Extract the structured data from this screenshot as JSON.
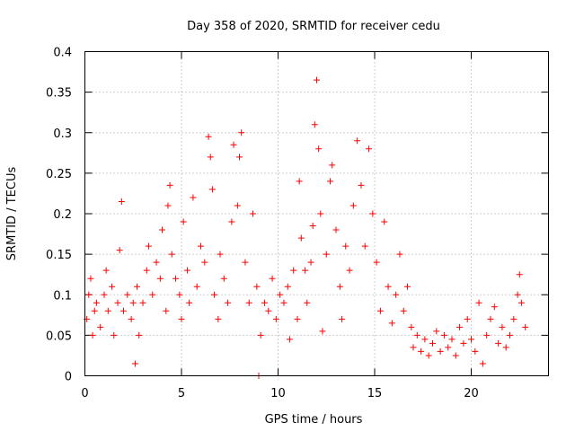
{
  "chart_data": {
    "type": "scatter",
    "title": "Day 358 of 2020, SRMTID for receiver cedu",
    "xlabel": "GPS time / hours",
    "ylabel": "SRMTID / TECUs",
    "xlim": [
      0,
      24
    ],
    "ylim": [
      0,
      0.4
    ],
    "xticks": [
      0,
      5,
      10,
      15,
      20
    ],
    "xtick_labels": [
      "0",
      "5",
      "10",
      "15",
      "20"
    ],
    "yticks": [
      0,
      0.05,
      0.1,
      0.15,
      0.2,
      0.25,
      0.3,
      0.35,
      0.4
    ],
    "ytick_labels": [
      "0",
      "0.05",
      "0.1",
      "0.15",
      "0.2",
      "0.25",
      "0.3",
      "0.35",
      "0.4"
    ],
    "grid": true,
    "marker": "+",
    "color": "#ff0000",
    "series": [
      {
        "name": "SRMTID",
        "points": [
          [
            0.1,
            0.07
          ],
          [
            0.2,
            0.1
          ],
          [
            0.3,
            0.12
          ],
          [
            0.4,
            0.05
          ],
          [
            0.5,
            0.08
          ],
          [
            0.6,
            0.09
          ],
          [
            0.8,
            0.06
          ],
          [
            1.0,
            0.1
          ],
          [
            1.1,
            0.13
          ],
          [
            1.2,
            0.08
          ],
          [
            1.4,
            0.11
          ],
          [
            1.5,
            0.05
          ],
          [
            1.7,
            0.09
          ],
          [
            1.8,
            0.155
          ],
          [
            1.9,
            0.215
          ],
          [
            2.0,
            0.08
          ],
          [
            2.2,
            0.1
          ],
          [
            2.4,
            0.07
          ],
          [
            2.5,
            0.09
          ],
          [
            2.6,
            0.015
          ],
          [
            2.7,
            0.11
          ],
          [
            2.8,
            0.05
          ],
          [
            3.0,
            0.09
          ],
          [
            3.2,
            0.13
          ],
          [
            3.3,
            0.16
          ],
          [
            3.5,
            0.1
          ],
          [
            3.7,
            0.14
          ],
          [
            3.9,
            0.12
          ],
          [
            4.0,
            0.18
          ],
          [
            4.2,
            0.08
          ],
          [
            4.3,
            0.21
          ],
          [
            4.4,
            0.235
          ],
          [
            4.5,
            0.15
          ],
          [
            4.7,
            0.12
          ],
          [
            4.9,
            0.1
          ],
          [
            5.0,
            0.07
          ],
          [
            5.1,
            0.19
          ],
          [
            5.3,
            0.13
          ],
          [
            5.4,
            0.09
          ],
          [
            5.6,
            0.22
          ],
          [
            5.8,
            0.11
          ],
          [
            6.0,
            0.16
          ],
          [
            6.2,
            0.14
          ],
          [
            6.4,
            0.295
          ],
          [
            6.5,
            0.27
          ],
          [
            6.6,
            0.23
          ],
          [
            6.7,
            0.1
          ],
          [
            6.9,
            0.07
          ],
          [
            7.0,
            0.15
          ],
          [
            7.2,
            0.12
          ],
          [
            7.4,
            0.09
          ],
          [
            7.6,
            0.19
          ],
          [
            7.7,
            0.285
          ],
          [
            7.9,
            0.21
          ],
          [
            8.0,
            0.27
          ],
          [
            8.1,
            0.3
          ],
          [
            8.3,
            0.14
          ],
          [
            8.5,
            0.09
          ],
          [
            8.7,
            0.2
          ],
          [
            8.9,
            0.11
          ],
          [
            9.0,
            0.0
          ],
          [
            9.1,
            0.05
          ],
          [
            9.3,
            0.09
          ],
          [
            9.5,
            0.08
          ],
          [
            9.7,
            0.12
          ],
          [
            9.9,
            0.07
          ],
          [
            10.1,
            0.1
          ],
          [
            10.3,
            0.09
          ],
          [
            10.5,
            0.11
          ],
          [
            10.6,
            0.045
          ],
          [
            10.8,
            0.13
          ],
          [
            11.0,
            0.07
          ],
          [
            11.1,
            0.24
          ],
          [
            11.2,
            0.17
          ],
          [
            11.4,
            0.13
          ],
          [
            11.5,
            0.09
          ],
          [
            11.7,
            0.14
          ],
          [
            11.8,
            0.185
          ],
          [
            11.9,
            0.31
          ],
          [
            12.0,
            0.365
          ],
          [
            12.1,
            0.28
          ],
          [
            12.2,
            0.2
          ],
          [
            12.3,
            0.055
          ],
          [
            12.5,
            0.15
          ],
          [
            12.7,
            0.24
          ],
          [
            12.8,
            0.26
          ],
          [
            13.0,
            0.18
          ],
          [
            13.2,
            0.11
          ],
          [
            13.3,
            0.07
          ],
          [
            13.5,
            0.16
          ],
          [
            13.7,
            0.13
          ],
          [
            13.9,
            0.21
          ],
          [
            14.1,
            0.29
          ],
          [
            14.3,
            0.235
          ],
          [
            14.5,
            0.16
          ],
          [
            14.7,
            0.28
          ],
          [
            14.9,
            0.2
          ],
          [
            15.1,
            0.14
          ],
          [
            15.3,
            0.08
          ],
          [
            15.5,
            0.19
          ],
          [
            15.7,
            0.11
          ],
          [
            15.9,
            0.065
          ],
          [
            16.1,
            0.1
          ],
          [
            16.3,
            0.15
          ],
          [
            16.5,
            0.08
          ],
          [
            16.7,
            0.11
          ],
          [
            16.9,
            0.06
          ],
          [
            17.0,
            0.035
          ],
          [
            17.2,
            0.05
          ],
          [
            17.4,
            0.03
          ],
          [
            17.6,
            0.045
          ],
          [
            17.8,
            0.025
          ],
          [
            18.0,
            0.04
          ],
          [
            18.2,
            0.055
          ],
          [
            18.4,
            0.03
          ],
          [
            18.6,
            0.05
          ],
          [
            18.8,
            0.035
          ],
          [
            19.0,
            0.045
          ],
          [
            19.2,
            0.025
          ],
          [
            19.4,
            0.06
          ],
          [
            19.6,
            0.04
          ],
          [
            19.8,
            0.07
          ],
          [
            20.0,
            0.045
          ],
          [
            20.2,
            0.03
          ],
          [
            20.4,
            0.09
          ],
          [
            20.6,
            0.015
          ],
          [
            20.8,
            0.05
          ],
          [
            21.0,
            0.07
          ],
          [
            21.2,
            0.085
          ],
          [
            21.4,
            0.04
          ],
          [
            21.6,
            0.06
          ],
          [
            21.8,
            0.035
          ],
          [
            22.0,
            0.05
          ],
          [
            22.2,
            0.07
          ],
          [
            22.4,
            0.1
          ],
          [
            22.5,
            0.125
          ],
          [
            22.6,
            0.09
          ],
          [
            22.8,
            0.06
          ]
        ]
      }
    ]
  }
}
